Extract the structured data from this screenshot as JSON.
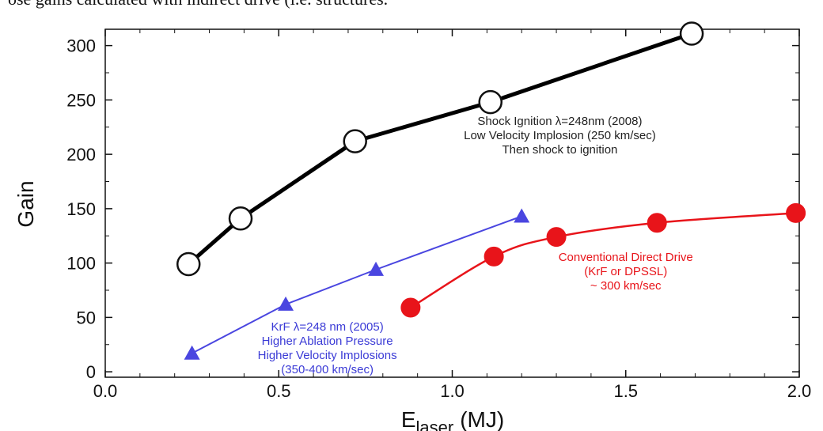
{
  "caption": "ose gains calculated with indirect drive (i.e. structures.",
  "chart_data": {
    "type": "line",
    "title": "",
    "xlabel": "E",
    "xlabel_sub": "laser",
    "xlabel_unit": "(MJ)",
    "ylabel": "Gain",
    "xlim": [
      0.0,
      2.0
    ],
    "ylim": [
      -5,
      315
    ],
    "x_ticks": [
      0.0,
      0.5,
      1.0,
      1.5,
      2.0
    ],
    "x_tick_labels": [
      "0.0",
      "0.5",
      "1.0",
      "1.5",
      "2.0"
    ],
    "y_ticks": [
      0,
      50,
      100,
      150,
      200,
      250,
      300
    ],
    "y_tick_labels": [
      "0",
      "50",
      "100",
      "150",
      "200",
      "250",
      "300"
    ],
    "grid": false,
    "series": [
      {
        "key": "shock",
        "color": "#000000",
        "marker": "open-circle",
        "smooth": false,
        "x": [
          0.24,
          0.39,
          0.72,
          1.11,
          1.69
        ],
        "y": [
          99,
          141,
          212,
          248,
          311
        ]
      },
      {
        "key": "krf",
        "color": "#4a46e0",
        "marker": "triangle",
        "smooth": false,
        "x": [
          0.25,
          0.52,
          0.78,
          1.2
        ],
        "y": [
          17,
          62,
          94,
          143
        ]
      },
      {
        "key": "direct",
        "color": "#e8141a",
        "marker": "filled-circle",
        "smooth": true,
        "x": [
          0.88,
          1.12,
          1.3,
          1.59,
          1.99
        ],
        "y": [
          59,
          106,
          124,
          137,
          146
        ]
      }
    ],
    "annotations": [
      {
        "key": "shock",
        "color": "#222222",
        "x": 1.31,
        "y": 227,
        "lines": [
          "Shock Ignition λ=248nm (2008)",
          "Low Velocity Implosion (250 km/sec)",
          "Then shock to ignition"
        ]
      },
      {
        "key": "krf",
        "color": "#3b3bd6",
        "x": 0.64,
        "y": 38,
        "lines": [
          "KrF λ=248 nm (2005)",
          "Higher Ablation Pressure",
          "Higher Velocity Implosions",
          "(350-400 km/sec)"
        ]
      },
      {
        "key": "direct",
        "color": "#e8141a",
        "x": 1.5,
        "y": 102,
        "lines": [
          "Conventional Direct Drive",
          "(KrF or DPSSL)",
          "~ 300 km/sec"
        ]
      }
    ]
  }
}
